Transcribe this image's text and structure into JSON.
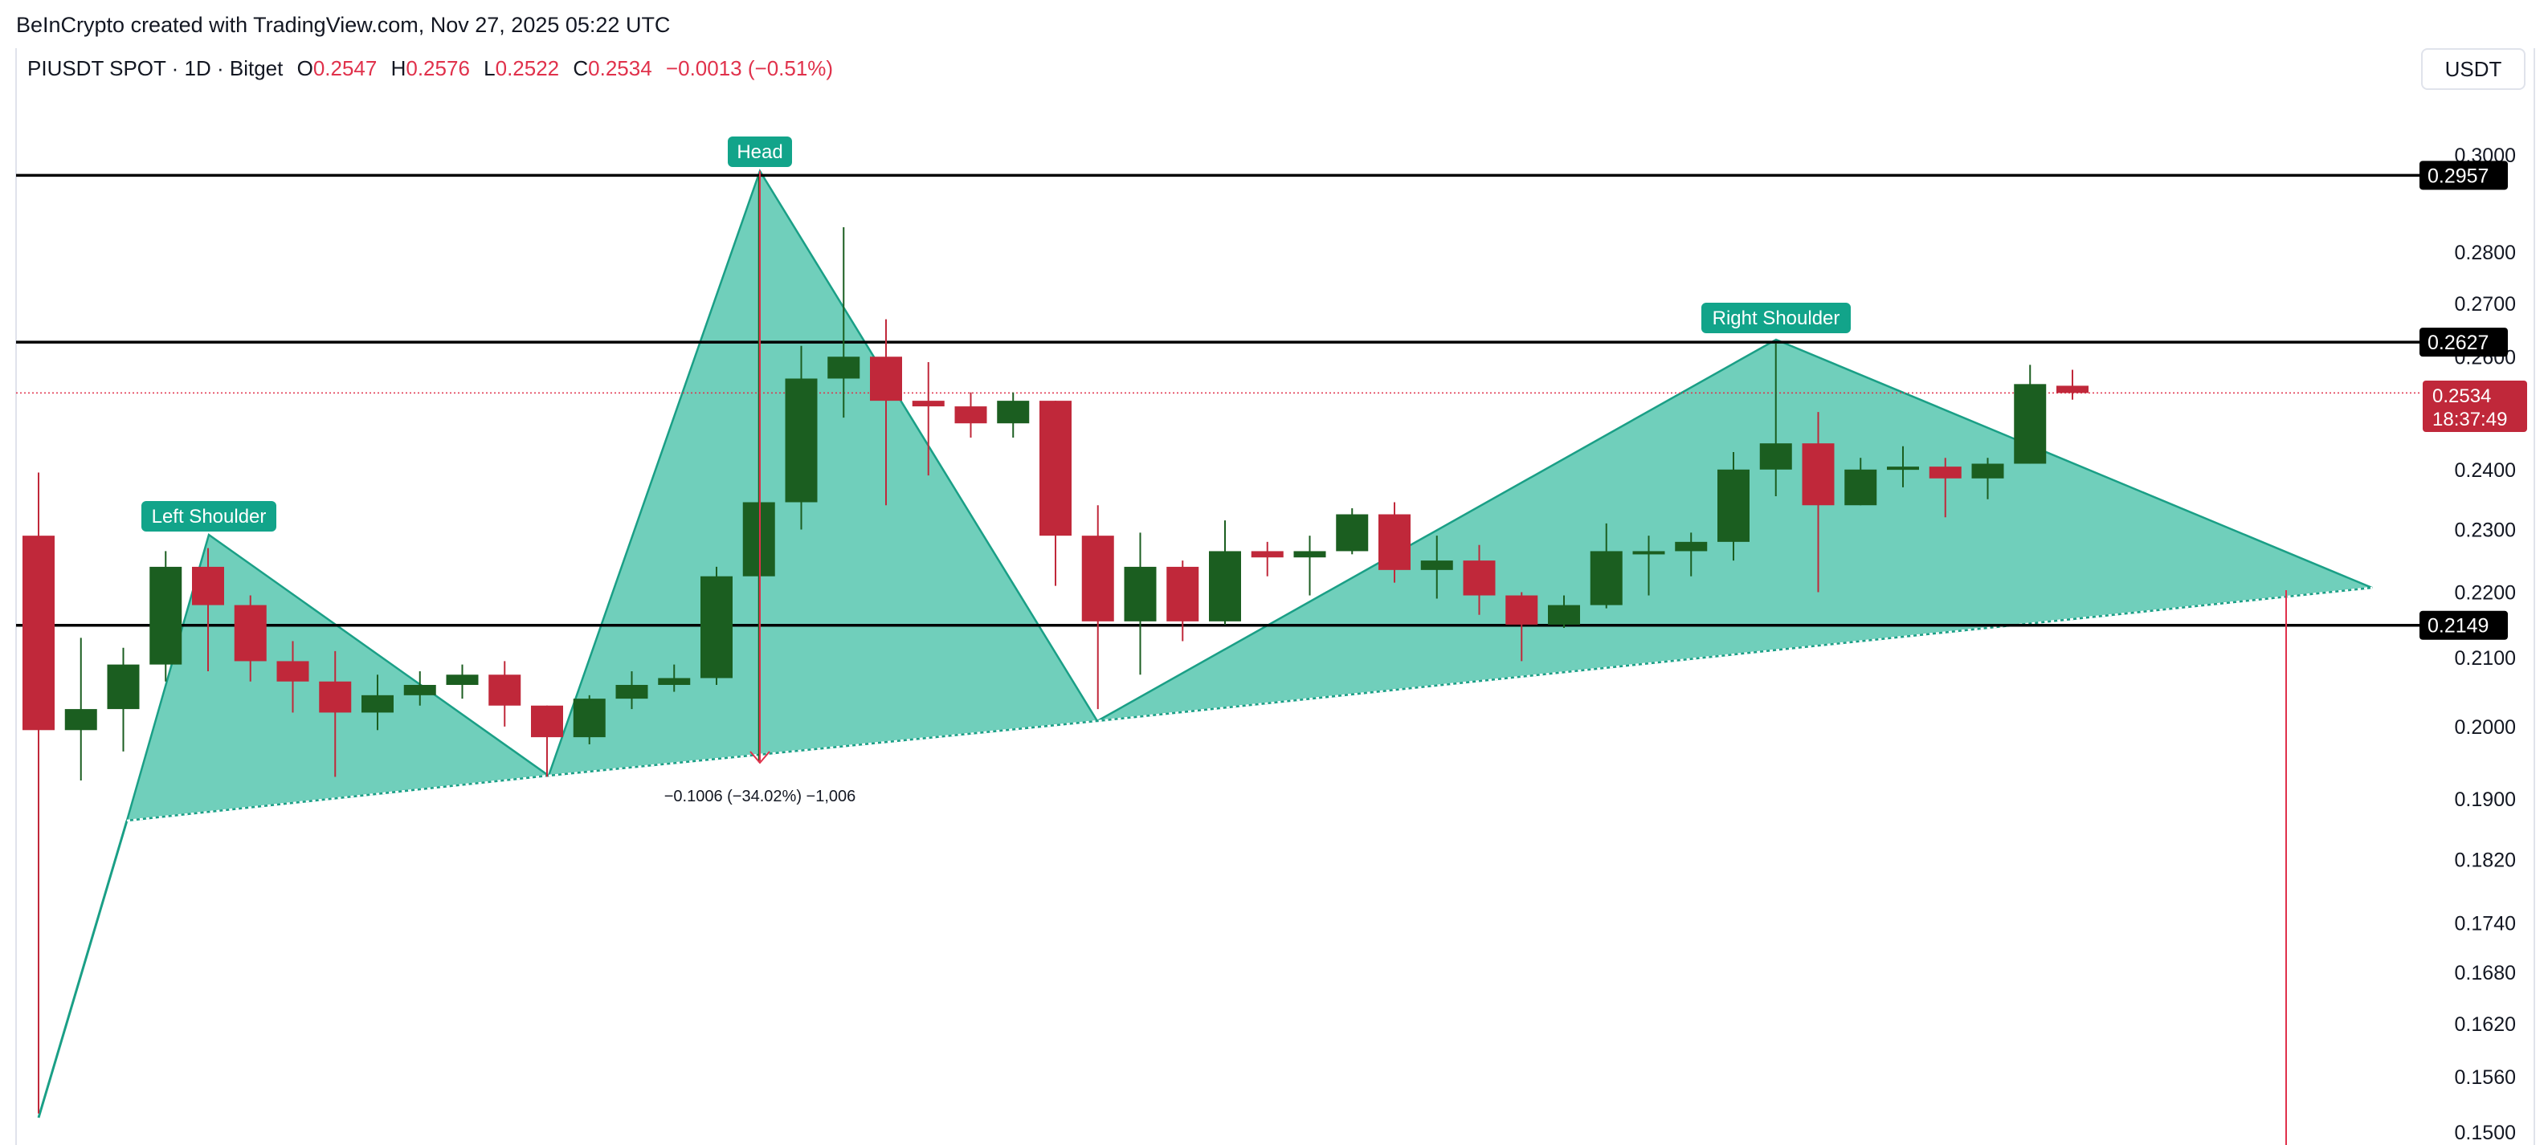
{
  "header": {
    "credit": "BeInCrypto created with TradingView.com, Nov 27, 2025 05:22 UTC",
    "symbol": "PIUSDT SPOT · 1D · Bitget",
    "ohlc": {
      "o_label": "O",
      "o": "0.2547",
      "h_label": "H",
      "h": "0.2576",
      "l_label": "L",
      "l": "0.2522",
      "c_label": "C",
      "c": "0.2534",
      "change": "−0.0013 (−0.51%)"
    },
    "currency": "USDT"
  },
  "colors": {
    "bull": "#1b5e20",
    "bear": "#c0283a",
    "pattern_fill": "#5cc8b2",
    "pattern_stroke": "#1a9f86",
    "label_bg": "#12a48a",
    "level_line": "#000000",
    "price_line": "#e0314b"
  },
  "chart_data": {
    "type": "candlestick",
    "title": "",
    "scale": "log",
    "ylim": [
      0.15,
      0.3
    ],
    "y_ticks": [
      "0.3000",
      "0.2800",
      "0.2700",
      "0.2600",
      "0.2400",
      "0.2300",
      "0.2200",
      "0.2100",
      "0.2000",
      "0.1900",
      "0.1820",
      "0.1740",
      "0.1680",
      "0.1620",
      "0.1560",
      "0.1500"
    ],
    "candles": [
      {
        "o": 0.229,
        "h": 0.2395,
        "l": 0.152,
        "c": 0.1995
      },
      {
        "o": 0.1995,
        "h": 0.213,
        "l": 0.1925,
        "c": 0.2025
      },
      {
        "o": 0.2025,
        "h": 0.2115,
        "l": 0.1965,
        "c": 0.209
      },
      {
        "o": 0.209,
        "h": 0.2265,
        "l": 0.2065,
        "c": 0.224
      },
      {
        "o": 0.224,
        "h": 0.227,
        "l": 0.208,
        "c": 0.218
      },
      {
        "o": 0.218,
        "h": 0.2195,
        "l": 0.2065,
        "c": 0.2095
      },
      {
        "o": 0.2095,
        "h": 0.2125,
        "l": 0.202,
        "c": 0.2065
      },
      {
        "o": 0.2065,
        "h": 0.211,
        "l": 0.193,
        "c": 0.202
      },
      {
        "o": 0.202,
        "h": 0.2075,
        "l": 0.1995,
        "c": 0.2045
      },
      {
        "o": 0.2045,
        "h": 0.208,
        "l": 0.203,
        "c": 0.206
      },
      {
        "o": 0.206,
        "h": 0.209,
        "l": 0.204,
        "c": 0.2075
      },
      {
        "o": 0.2075,
        "h": 0.2095,
        "l": 0.2,
        "c": 0.203
      },
      {
        "o": 0.203,
        "h": 0.203,
        "l": 0.193,
        "c": 0.1985
      },
      {
        "o": 0.1985,
        "h": 0.2045,
        "l": 0.1975,
        "c": 0.204
      },
      {
        "o": 0.204,
        "h": 0.208,
        "l": 0.2025,
        "c": 0.206
      },
      {
        "o": 0.206,
        "h": 0.209,
        "l": 0.205,
        "c": 0.207
      },
      {
        "o": 0.207,
        "h": 0.224,
        "l": 0.206,
        "c": 0.2225
      },
      {
        "o": 0.2225,
        "h": 0.2955,
        "l": 0.195,
        "c": 0.2345
      },
      {
        "o": 0.2345,
        "h": 0.262,
        "l": 0.23,
        "c": 0.256
      },
      {
        "o": 0.256,
        "h": 0.285,
        "l": 0.249,
        "c": 0.26
      },
      {
        "o": 0.26,
        "h": 0.267,
        "l": 0.234,
        "c": 0.252
      },
      {
        "o": 0.252,
        "h": 0.259,
        "l": 0.239,
        "c": 0.251
      },
      {
        "o": 0.251,
        "h": 0.2535,
        "l": 0.2455,
        "c": 0.248
      },
      {
        "o": 0.248,
        "h": 0.2535,
        "l": 0.2455,
        "c": 0.252
      },
      {
        "o": 0.252,
        "h": 0.252,
        "l": 0.221,
        "c": 0.229
      },
      {
        "o": 0.229,
        "h": 0.234,
        "l": 0.2025,
        "c": 0.2155
      },
      {
        "o": 0.2155,
        "h": 0.2295,
        "l": 0.2075,
        "c": 0.224
      },
      {
        "o": 0.224,
        "h": 0.225,
        "l": 0.2125,
        "c": 0.2155
      },
      {
        "o": 0.2155,
        "h": 0.2315,
        "l": 0.215,
        "c": 0.2265
      },
      {
        "o": 0.2265,
        "h": 0.228,
        "l": 0.2225,
        "c": 0.2255
      },
      {
        "o": 0.2255,
        "h": 0.229,
        "l": 0.2195,
        "c": 0.2265
      },
      {
        "o": 0.2265,
        "h": 0.2335,
        "l": 0.226,
        "c": 0.2325
      },
      {
        "o": 0.2325,
        "h": 0.2345,
        "l": 0.2215,
        "c": 0.2235
      },
      {
        "o": 0.2235,
        "h": 0.229,
        "l": 0.219,
        "c": 0.225
      },
      {
        "o": 0.225,
        "h": 0.2275,
        "l": 0.2165,
        "c": 0.2195
      },
      {
        "o": 0.2195,
        "h": 0.22,
        "l": 0.2095,
        "c": 0.215
      },
      {
        "o": 0.215,
        "h": 0.2195,
        "l": 0.2145,
        "c": 0.218
      },
      {
        "o": 0.218,
        "h": 0.231,
        "l": 0.2175,
        "c": 0.2265
      },
      {
        "o": 0.2265,
        "h": 0.229,
        "l": 0.2195,
        "c": 0.2265
      },
      {
        "o": 0.2265,
        "h": 0.2295,
        "l": 0.2225,
        "c": 0.228
      },
      {
        "o": 0.228,
        "h": 0.243,
        "l": 0.225,
        "c": 0.24
      },
      {
        "o": 0.24,
        "h": 0.2625,
        "l": 0.2355,
        "c": 0.2445
      },
      {
        "o": 0.2445,
        "h": 0.25,
        "l": 0.22,
        "c": 0.234
      },
      {
        "o": 0.234,
        "h": 0.242,
        "l": 0.234,
        "c": 0.24
      },
      {
        "o": 0.24,
        "h": 0.244,
        "l": 0.237,
        "c": 0.2405
      },
      {
        "o": 0.2405,
        "h": 0.242,
        "l": 0.232,
        "c": 0.2385
      },
      {
        "o": 0.2385,
        "h": 0.242,
        "l": 0.235,
        "c": 0.241
      },
      {
        "o": 0.241,
        "h": 0.2585,
        "l": 0.241,
        "c": 0.255
      },
      {
        "o": 0.2547,
        "h": 0.2576,
        "l": 0.2522,
        "c": 0.2534
      }
    ],
    "horizontal_levels": [
      {
        "price": 0.2957,
        "label": "0.2957"
      },
      {
        "price": 0.2627,
        "label": "0.2627"
      },
      {
        "price": 0.2149,
        "label": "0.2149"
      }
    ],
    "current_price": {
      "label": "0.2534",
      "countdown": "18:37:49"
    },
    "pattern_labels": {
      "left_shoulder": "Left Shoulder",
      "head": "Head",
      "right_shoulder": "Right Shoulder"
    },
    "measurement": "−0.1006 (−34.02%) −1,006"
  }
}
